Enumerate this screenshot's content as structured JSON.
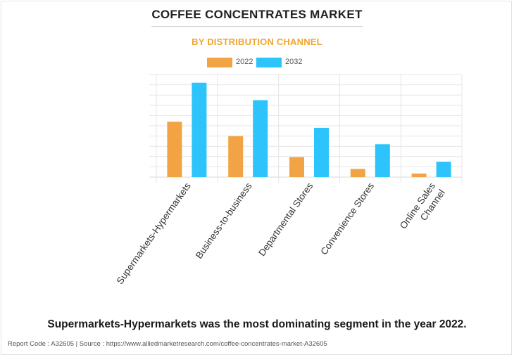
{
  "header": {
    "title": "COFFEE CONCENTRATES MARKET",
    "subtitle": "BY DISTRIBUTION CHANNEL"
  },
  "colors": {
    "subtitle": "#f0a530",
    "series_2022": "#f2a444",
    "series_2032": "#2cc4fb",
    "grid": "#e6e6e6",
    "axis_text": "#333333"
  },
  "chart_data": {
    "type": "bar",
    "categories": [
      "Supermarkets-Hypermarkets",
      "Business-to-business",
      "Departmental Stores",
      "Convenience Stores",
      "Online Sales Channel"
    ],
    "series": [
      {
        "name": "2022",
        "values": [
          5.4,
          4.0,
          1.95,
          0.8,
          0.35
        ]
      },
      {
        "name": "2032",
        "values": [
          9.2,
          7.5,
          4.8,
          3.2,
          1.5
        ]
      }
    ],
    "ylim": [
      0,
      10
    ],
    "grid": true,
    "legend": "top-center",
    "xlabel": "",
    "ylabel": ""
  },
  "conclusion": "Supermarkets-Hypermarkets was the most dominating segment in the year 2022.",
  "footer": "Report Code : A32605  |  Source : https://www.alliedmarketresearch.com/coffee-concentrates-market-A32605"
}
